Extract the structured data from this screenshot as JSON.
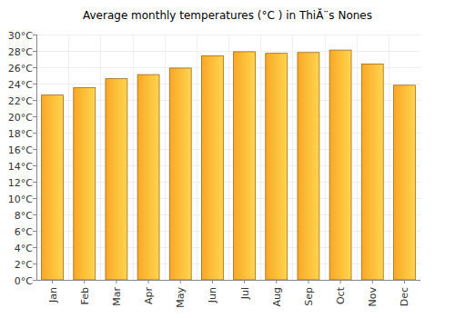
{
  "chart_data": {
    "type": "bar",
    "title": "Average monthly temperatures (°C ) in ThiĂ¨s Nones",
    "categories": [
      "Jan",
      "Feb",
      "Mar",
      "Apr",
      "May",
      "Jun",
      "Jul",
      "Aug",
      "Sep",
      "Oct",
      "Nov",
      "Dec"
    ],
    "values": [
      22.6,
      23.5,
      24.6,
      25.1,
      25.9,
      27.4,
      27.9,
      27.7,
      27.8,
      28.1,
      26.4,
      23.8
    ],
    "color": "#f9a825",
    "ylim": [
      0,
      30
    ],
    "yticks": [
      {
        "value": 0,
        "label": "0°C"
      },
      {
        "value": 2,
        "label": "2°C"
      },
      {
        "value": 4,
        "label": "4°C"
      },
      {
        "value": 6,
        "label": "6°C"
      },
      {
        "value": 8,
        "label": "8°C"
      },
      {
        "value": 10,
        "label": "10°C"
      },
      {
        "value": 12,
        "label": "12°C"
      },
      {
        "value": 14,
        "label": "14°C"
      },
      {
        "value": 16,
        "label": "16°C"
      },
      {
        "value": 18,
        "label": "18°C"
      },
      {
        "value": 20,
        "label": "20°C"
      },
      {
        "value": 22,
        "label": "22°C"
      },
      {
        "value": 24,
        "label": "24°C"
      },
      {
        "value": 26,
        "label": "26°C"
      },
      {
        "value": 28,
        "label": "28°C"
      },
      {
        "value": 30,
        "label": "30°C"
      }
    ],
    "grid": true
  }
}
